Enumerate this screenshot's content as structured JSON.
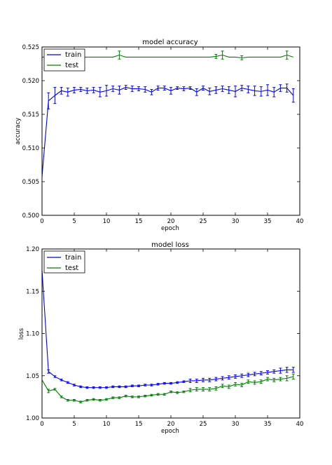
{
  "chart_data": [
    {
      "type": "line",
      "title": "model accuracy",
      "xlabel": "epoch",
      "ylabel": "accuracy",
      "xlim": [
        0,
        40
      ],
      "ylim": [
        0.5,
        0.525
      ],
      "xticks": [
        0,
        5,
        10,
        15,
        20,
        25,
        30,
        35,
        40
      ],
      "yticks": [
        0.5,
        0.505,
        0.51,
        0.515,
        0.52,
        0.525
      ],
      "ytick_labels": [
        "0.500",
        "0.505",
        "0.510",
        "0.515",
        "0.520",
        "0.525"
      ],
      "xtick_labels": [
        "0",
        "5",
        "10",
        "15",
        "20",
        "25",
        "30",
        "35",
        "40"
      ],
      "legend_position": "top-left",
      "grid": false,
      "series": [
        {
          "name": "train",
          "color": "#0000ff",
          "x": [
            0,
            1,
            2,
            3,
            4,
            5,
            6,
            7,
            8,
            9,
            10,
            11,
            12,
            13,
            14,
            15,
            16,
            17,
            18,
            19,
            20,
            21,
            22,
            23,
            24,
            25,
            26,
            27,
            28,
            29,
            30,
            31,
            32,
            33,
            34,
            35,
            36,
            37,
            38,
            39
          ],
          "y": [
            0.5058,
            0.517,
            0.5178,
            0.5185,
            0.5183,
            0.5186,
            0.5187,
            0.5185,
            0.5186,
            0.5183,
            0.5185,
            0.5188,
            0.5186,
            0.519,
            0.5188,
            0.5188,
            0.5187,
            0.5183,
            0.5189,
            0.5189,
            0.5185,
            0.5189,
            0.5188,
            0.5189,
            0.5183,
            0.5189,
            0.5184,
            0.5186,
            0.5188,
            0.5186,
            0.5184,
            0.5189,
            0.5187,
            0.5185,
            0.5184,
            0.5186,
            0.5183,
            0.5189,
            0.5189,
            0.5178
          ],
          "err": [
            0,
            0.0012,
            0.0012,
            0.0005,
            0.0006,
            0.0004,
            0.0003,
            0.0004,
            0.0004,
            0.0007,
            0.0008,
            0.0004,
            0.0006,
            0.0003,
            0.0004,
            0.0003,
            0.0004,
            0.0004,
            0.0003,
            0.0003,
            0.0005,
            0.0002,
            0.0003,
            0.0002,
            0.0005,
            0.0003,
            0.0005,
            0.0005,
            0.0004,
            0.0005,
            0.0008,
            0.0004,
            0.0005,
            0.0007,
            0.0007,
            0.0008,
            0.0007,
            0.0005,
            0.0006,
            0.001
          ]
        },
        {
          "name": "test",
          "color": "#008000",
          "x": [
            0,
            1,
            2,
            3,
            4,
            5,
            6,
            7,
            8,
            9,
            10,
            11,
            12,
            13,
            14,
            15,
            16,
            17,
            18,
            19,
            20,
            21,
            22,
            23,
            24,
            25,
            26,
            27,
            28,
            29,
            30,
            31,
            32,
            33,
            34,
            35,
            36,
            37,
            38,
            39
          ],
          "y": [
            0.5235,
            0.5235,
            0.5235,
            0.5235,
            0.5235,
            0.5235,
            0.5235,
            0.5235,
            0.5235,
            0.5235,
            0.5235,
            0.5235,
            0.5238,
            0.5235,
            0.5235,
            0.5235,
            0.5235,
            0.5235,
            0.5235,
            0.5235,
            0.5235,
            0.5235,
            0.5235,
            0.5235,
            0.5235,
            0.5235,
            0.5235,
            0.5236,
            0.5238,
            0.5235,
            0.5235,
            0.5234,
            0.5235,
            0.5235,
            0.5235,
            0.5235,
            0.5235,
            0.5235,
            0.5238,
            0.5235
          ],
          "err": [
            0,
            0,
            0,
            0,
            0,
            0,
            0,
            0,
            0,
            0,
            0,
            0,
            0.0006,
            0,
            0,
            0,
            0,
            0,
            0,
            0,
            0,
            0,
            0,
            0,
            0,
            0,
            0,
            0.0003,
            0.0006,
            0,
            0,
            0.0003,
            0,
            0,
            0,
            0,
            0,
            0,
            0.0006,
            0
          ]
        }
      ]
    },
    {
      "type": "line",
      "title": "model loss",
      "xlabel": "epoch",
      "ylabel": "loss",
      "xlim": [
        0,
        40
      ],
      "ylim": [
        1.0,
        1.2
      ],
      "xticks": [
        0,
        5,
        10,
        15,
        20,
        25,
        30,
        35,
        40
      ],
      "yticks": [
        1.0,
        1.05,
        1.1,
        1.15,
        1.2
      ],
      "ytick_labels": [
        "1.00",
        "1.05",
        "1.10",
        "1.15",
        "1.20"
      ],
      "xtick_labels": [
        "0",
        "5",
        "10",
        "15",
        "20",
        "25",
        "30",
        "35",
        "40"
      ],
      "legend_position": "top-left",
      "grid": false,
      "series": [
        {
          "name": "train",
          "color": "#0000ff",
          "x": [
            0,
            1,
            2,
            3,
            4,
            5,
            6,
            7,
            8,
            9,
            10,
            11,
            12,
            13,
            14,
            15,
            16,
            17,
            18,
            19,
            20,
            21,
            22,
            23,
            24,
            25,
            26,
            27,
            28,
            29,
            30,
            31,
            32,
            33,
            34,
            35,
            36,
            37,
            38,
            39
          ],
          "y": [
            1.175,
            1.055,
            1.049,
            1.045,
            1.042,
            1.039,
            1.037,
            1.036,
            1.036,
            1.036,
            1.036,
            1.037,
            1.037,
            1.037,
            1.038,
            1.038,
            1.039,
            1.039,
            1.04,
            1.041,
            1.041,
            1.042,
            1.043,
            1.044,
            1.044,
            1.045,
            1.045,
            1.046,
            1.047,
            1.048,
            1.049,
            1.05,
            1.051,
            1.052,
            1.053,
            1.054,
            1.055,
            1.056,
            1.057,
            1.057
          ],
          "err": [
            0,
            0.002,
            0.001,
            0.001,
            0.001,
            0.001,
            0.001,
            0.001,
            0.001,
            0.001,
            0.001,
            0.001,
            0.001,
            0.001,
            0.001,
            0.001,
            0.001,
            0.001,
            0.001,
            0.001,
            0.001,
            0.001,
            0.001,
            0.002,
            0.002,
            0.002,
            0.002,
            0.002,
            0.002,
            0.002,
            0.002,
            0.002,
            0.002,
            0.002,
            0.002,
            0.002,
            0.002,
            0.003,
            0.003,
            0.003
          ]
        },
        {
          "name": "test",
          "color": "#008000",
          "x": [
            0,
            1,
            2,
            3,
            4,
            5,
            6,
            7,
            8,
            9,
            10,
            11,
            12,
            13,
            14,
            15,
            16,
            17,
            18,
            19,
            20,
            21,
            22,
            23,
            24,
            25,
            26,
            27,
            28,
            29,
            30,
            31,
            32,
            33,
            34,
            35,
            36,
            37,
            38,
            39
          ],
          "y": [
            1.045,
            1.032,
            1.034,
            1.025,
            1.021,
            1.021,
            1.019,
            1.021,
            1.022,
            1.021,
            1.022,
            1.024,
            1.024,
            1.026,
            1.025,
            1.025,
            1.026,
            1.027,
            1.028,
            1.028,
            1.031,
            1.03,
            1.031,
            1.033,
            1.034,
            1.034,
            1.034,
            1.035,
            1.038,
            1.037,
            1.04,
            1.039,
            1.043,
            1.042,
            1.043,
            1.046,
            1.045,
            1.046,
            1.047,
            1.049
          ],
          "err": [
            0,
            0.002,
            0.001,
            0.001,
            0.001,
            0.001,
            0.001,
            0.001,
            0.001,
            0.001,
            0.001,
            0.001,
            0.001,
            0.001,
            0.001,
            0.001,
            0.001,
            0.001,
            0.001,
            0.001,
            0.001,
            0.001,
            0.001,
            0.002,
            0.002,
            0.002,
            0.002,
            0.002,
            0.002,
            0.002,
            0.002,
            0.002,
            0.002,
            0.002,
            0.002,
            0.002,
            0.002,
            0.002,
            0.003,
            0.003
          ]
        }
      ]
    }
  ]
}
